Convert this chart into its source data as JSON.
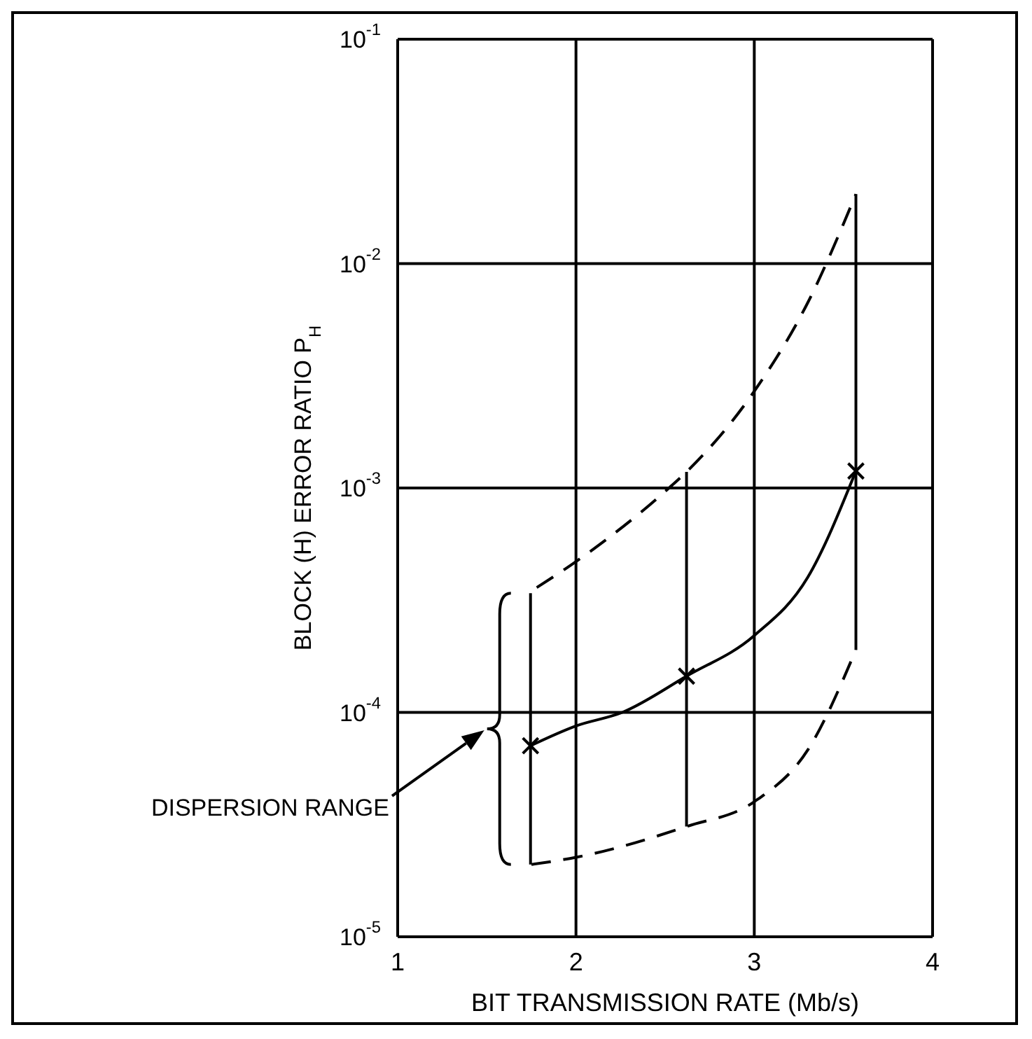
{
  "chart_data": {
    "type": "line",
    "xlabel": "BIT TRANSMISSION RATE (Mb/s)",
    "ylabel": "BLOCK (H) ERROR RATIO P$_{H}$",
    "xlim": [
      1,
      4
    ],
    "xticks": [
      1,
      2,
      3,
      4
    ],
    "ylim": [
      1e-05,
      0.1
    ],
    "yticks": [
      {
        "value": 1e-05,
        "label": "10$^{-5}$"
      },
      {
        "value": 0.0001,
        "label": "10$^{-4}$"
      },
      {
        "value": 0.001,
        "label": "10$^{-3}$"
      },
      {
        "value": 0.01,
        "label": "10$^{-2}$"
      },
      {
        "value": 0.1,
        "label": "10$^{-1}$"
      }
    ],
    "log": "y",
    "grid": true,
    "annotations": [
      "DISPERSION RANGE"
    ],
    "series": [
      {
        "color": "#000000",
        "line_style": "solid",
        "marker": "none",
        "x": [
          1.745,
          2.0,
          2.26,
          2.62,
          3.0,
          3.3,
          3.57
        ],
        "values": [
          7.1e-05,
          8.7e-05,
          0.0001,
          0.000145,
          0.00022,
          0.0004,
          0.00119
        ]
      },
      {
        "color": "#000000",
        "line_style": "dashed",
        "marker": "none",
        "x": [
          1.78,
          2.0,
          2.49,
          2.62,
          3.0,
          3.3,
          3.57
        ],
        "values": [
          0.00036,
          0.00047,
          0.00095,
          0.00118,
          0.0027,
          0.0067,
          0.0204
        ]
      },
      {
        "color": "#000000",
        "line_style": "dashed",
        "marker": "none",
        "x": [
          1.75,
          2.0,
          2.62,
          3.0,
          3.3,
          3.57
        ],
        "values": [
          2.1e-05,
          2.26e-05,
          3.1e-05,
          4e-05,
          6.8e-05,
          0.00019
        ]
      },
      {
        "type": "scatter",
        "color": "#000000",
        "marker": "cross",
        "x": [
          1.745,
          2.62,
          3.57
        ],
        "values": [
          7.1e-05,
          0.000145,
          0.00119
        ],
        "errors": [
          [
            2.1e-05,
            0.00034
          ],
          [
            3.1e-05,
            0.00118
          ],
          [
            0.00019,
            0.0204
          ]
        ]
      }
    ]
  }
}
